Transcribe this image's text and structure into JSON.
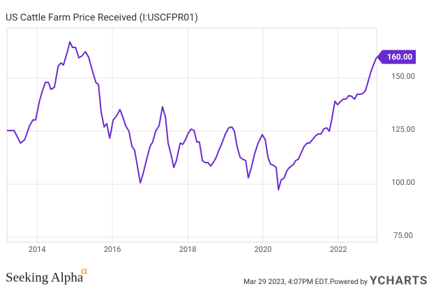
{
  "chart_data": {
    "type": "line",
    "title": "US Cattle Farm Price Received (I:USCFPR01)",
    "x": [
      2013.2,
      2013.39,
      2013.56,
      2013.67,
      2013.8,
      2013.89,
      2013.96,
      2014.06,
      2014.13,
      2014.22,
      2014.3,
      2014.37,
      2014.46,
      2014.56,
      2014.63,
      2014.7,
      2014.8,
      2014.87,
      2014.94,
      2015.02,
      2015.11,
      2015.2,
      2015.28,
      2015.37,
      2015.46,
      2015.56,
      2015.63,
      2015.7,
      2015.78,
      2015.85,
      2015.93,
      2016.02,
      2016.11,
      2016.2,
      2016.28,
      2016.35,
      2016.44,
      2016.52,
      2016.59,
      2016.67,
      2016.74,
      2016.81,
      2016.91,
      2017.0,
      2017.07,
      2017.15,
      2017.24,
      2017.33,
      2017.41,
      2017.48,
      2017.56,
      2017.63,
      2017.7,
      2017.8,
      2017.87,
      2017.94,
      2018.02,
      2018.09,
      2018.17,
      2018.24,
      2018.31,
      2018.39,
      2018.46,
      2018.54,
      2018.61,
      2018.69,
      2018.76,
      2018.83,
      2018.91,
      2019.0,
      2019.09,
      2019.17,
      2019.24,
      2019.31,
      2019.39,
      2019.46,
      2019.54,
      2019.61,
      2019.69,
      2019.78,
      2019.87,
      2019.98,
      2020.06,
      2020.13,
      2020.2,
      2020.28,
      2020.35,
      2020.41,
      2020.48,
      2020.56,
      2020.63,
      2020.7,
      2020.8,
      2020.87,
      2020.94,
      2021.02,
      2021.09,
      2021.17,
      2021.24,
      2021.31,
      2021.39,
      2021.46,
      2021.54,
      2021.61,
      2021.69,
      2021.76,
      2021.83,
      2021.91,
      2021.98,
      2022.06,
      2022.13,
      2022.2,
      2022.28,
      2022.35,
      2022.43,
      2022.5,
      2022.57,
      2022.65,
      2022.72,
      2022.8,
      2022.87,
      2022.94,
      2023.02
    ],
    "series": [
      {
        "color": "#6a2bd0",
        "values": [
          125.3,
          125.3,
          119.4,
          121,
          127.6,
          130.3,
          130.3,
          139,
          143.4,
          148,
          148,
          144.7,
          145.7,
          155.6,
          157.2,
          156.2,
          162.2,
          167.1,
          164.5,
          164.5,
          159.6,
          160.6,
          162.5,
          159.9,
          154,
          148,
          147,
          134.2,
          127,
          128.6,
          121.7,
          130.3,
          132.2,
          135.2,
          131.6,
          127.6,
          125,
          117.8,
          116.1,
          107.9,
          100.7,
          104.6,
          111.8,
          117.8,
          120,
          125,
          127.6,
          136.5,
          131.6,
          119.4,
          113.8,
          107.9,
          111.2,
          119.4,
          118.8,
          121,
          124.3,
          126,
          125.3,
          120,
          120,
          111.2,
          110.2,
          110.2,
          108.6,
          110.5,
          112.8,
          116.1,
          119.4,
          123.7,
          126.6,
          127,
          125,
          117.8,
          112.8,
          111.8,
          111.2,
          103,
          107.9,
          114.5,
          119.4,
          123.4,
          121,
          112.8,
          109.5,
          108.9,
          107.9,
          97.4,
          102,
          103,
          106.2,
          107.9,
          109.2,
          111.2,
          111.8,
          115.1,
          117.8,
          119.4,
          119.4,
          121,
          122.7,
          123.7,
          123.7,
          126,
          126.6,
          125,
          130.9,
          139.1,
          137.5,
          139.1,
          140.1,
          140.1,
          141.8,
          141.5,
          140.1,
          142.4,
          142.4,
          142.8,
          144.1,
          149,
          153.3,
          156.6,
          160
        ],
        "last_value_label": "160.00"
      }
    ],
    "xlim": [
      2013.2,
      2023.02
    ],
    "xticks": [
      2014,
      2016,
      2018,
      2020,
      2022
    ],
    "ylim": [
      72.7,
      173.7
    ],
    "yticks": [
      {
        "value": 75,
        "label": "75.00"
      },
      {
        "value": 100,
        "label": "100.00"
      },
      {
        "value": 125,
        "label": "125.00"
      },
      {
        "value": 150,
        "label": "150.00"
      }
    ],
    "grid": true,
    "footer": {
      "brand": "Seeking Alpha",
      "brand_mark": "α",
      "timestamp": "Mar 29 2023, 4:07PM EDT.",
      "powered": "Powered by",
      "provider": "YCHARTS"
    }
  }
}
